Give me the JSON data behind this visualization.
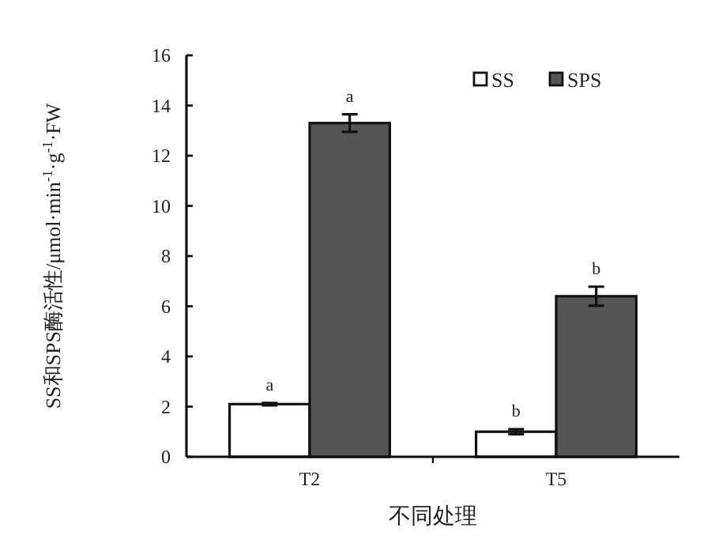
{
  "chart_data": {
    "type": "bar",
    "xlabel": "不同处理",
    "ylabel": "SS和SPS酶活性/μmol·min$^{-1}$·g$^{-1}$·FW",
    "categories": [
      "T2",
      "T5"
    ],
    "series": [
      {
        "name": "SS",
        "color": "#ffffff",
        "values": [
          2.1,
          1.0
        ],
        "errors": [
          0.05,
          0.1
        ]
      },
      {
        "name": "SPS",
        "color": "#555555",
        "values": [
          13.3,
          6.4
        ],
        "errors": [
          0.35,
          0.38
        ]
      }
    ],
    "ylim": [
      0,
      16
    ],
    "yticks": [
      0,
      2,
      4,
      6,
      8,
      10,
      12,
      14,
      16
    ],
    "legend": "top right",
    "grid": false,
    "annotations": [
      {
        "text": "a",
        "x": "T2",
        "y": 2.1
      },
      {
        "text": "a",
        "x": "T2",
        "y": 13.3
      },
      {
        "text": "b",
        "x": "T5",
        "y": 1.0
      },
      {
        "text": "b",
        "x": "T5",
        "y": 6.4
      }
    ]
  }
}
